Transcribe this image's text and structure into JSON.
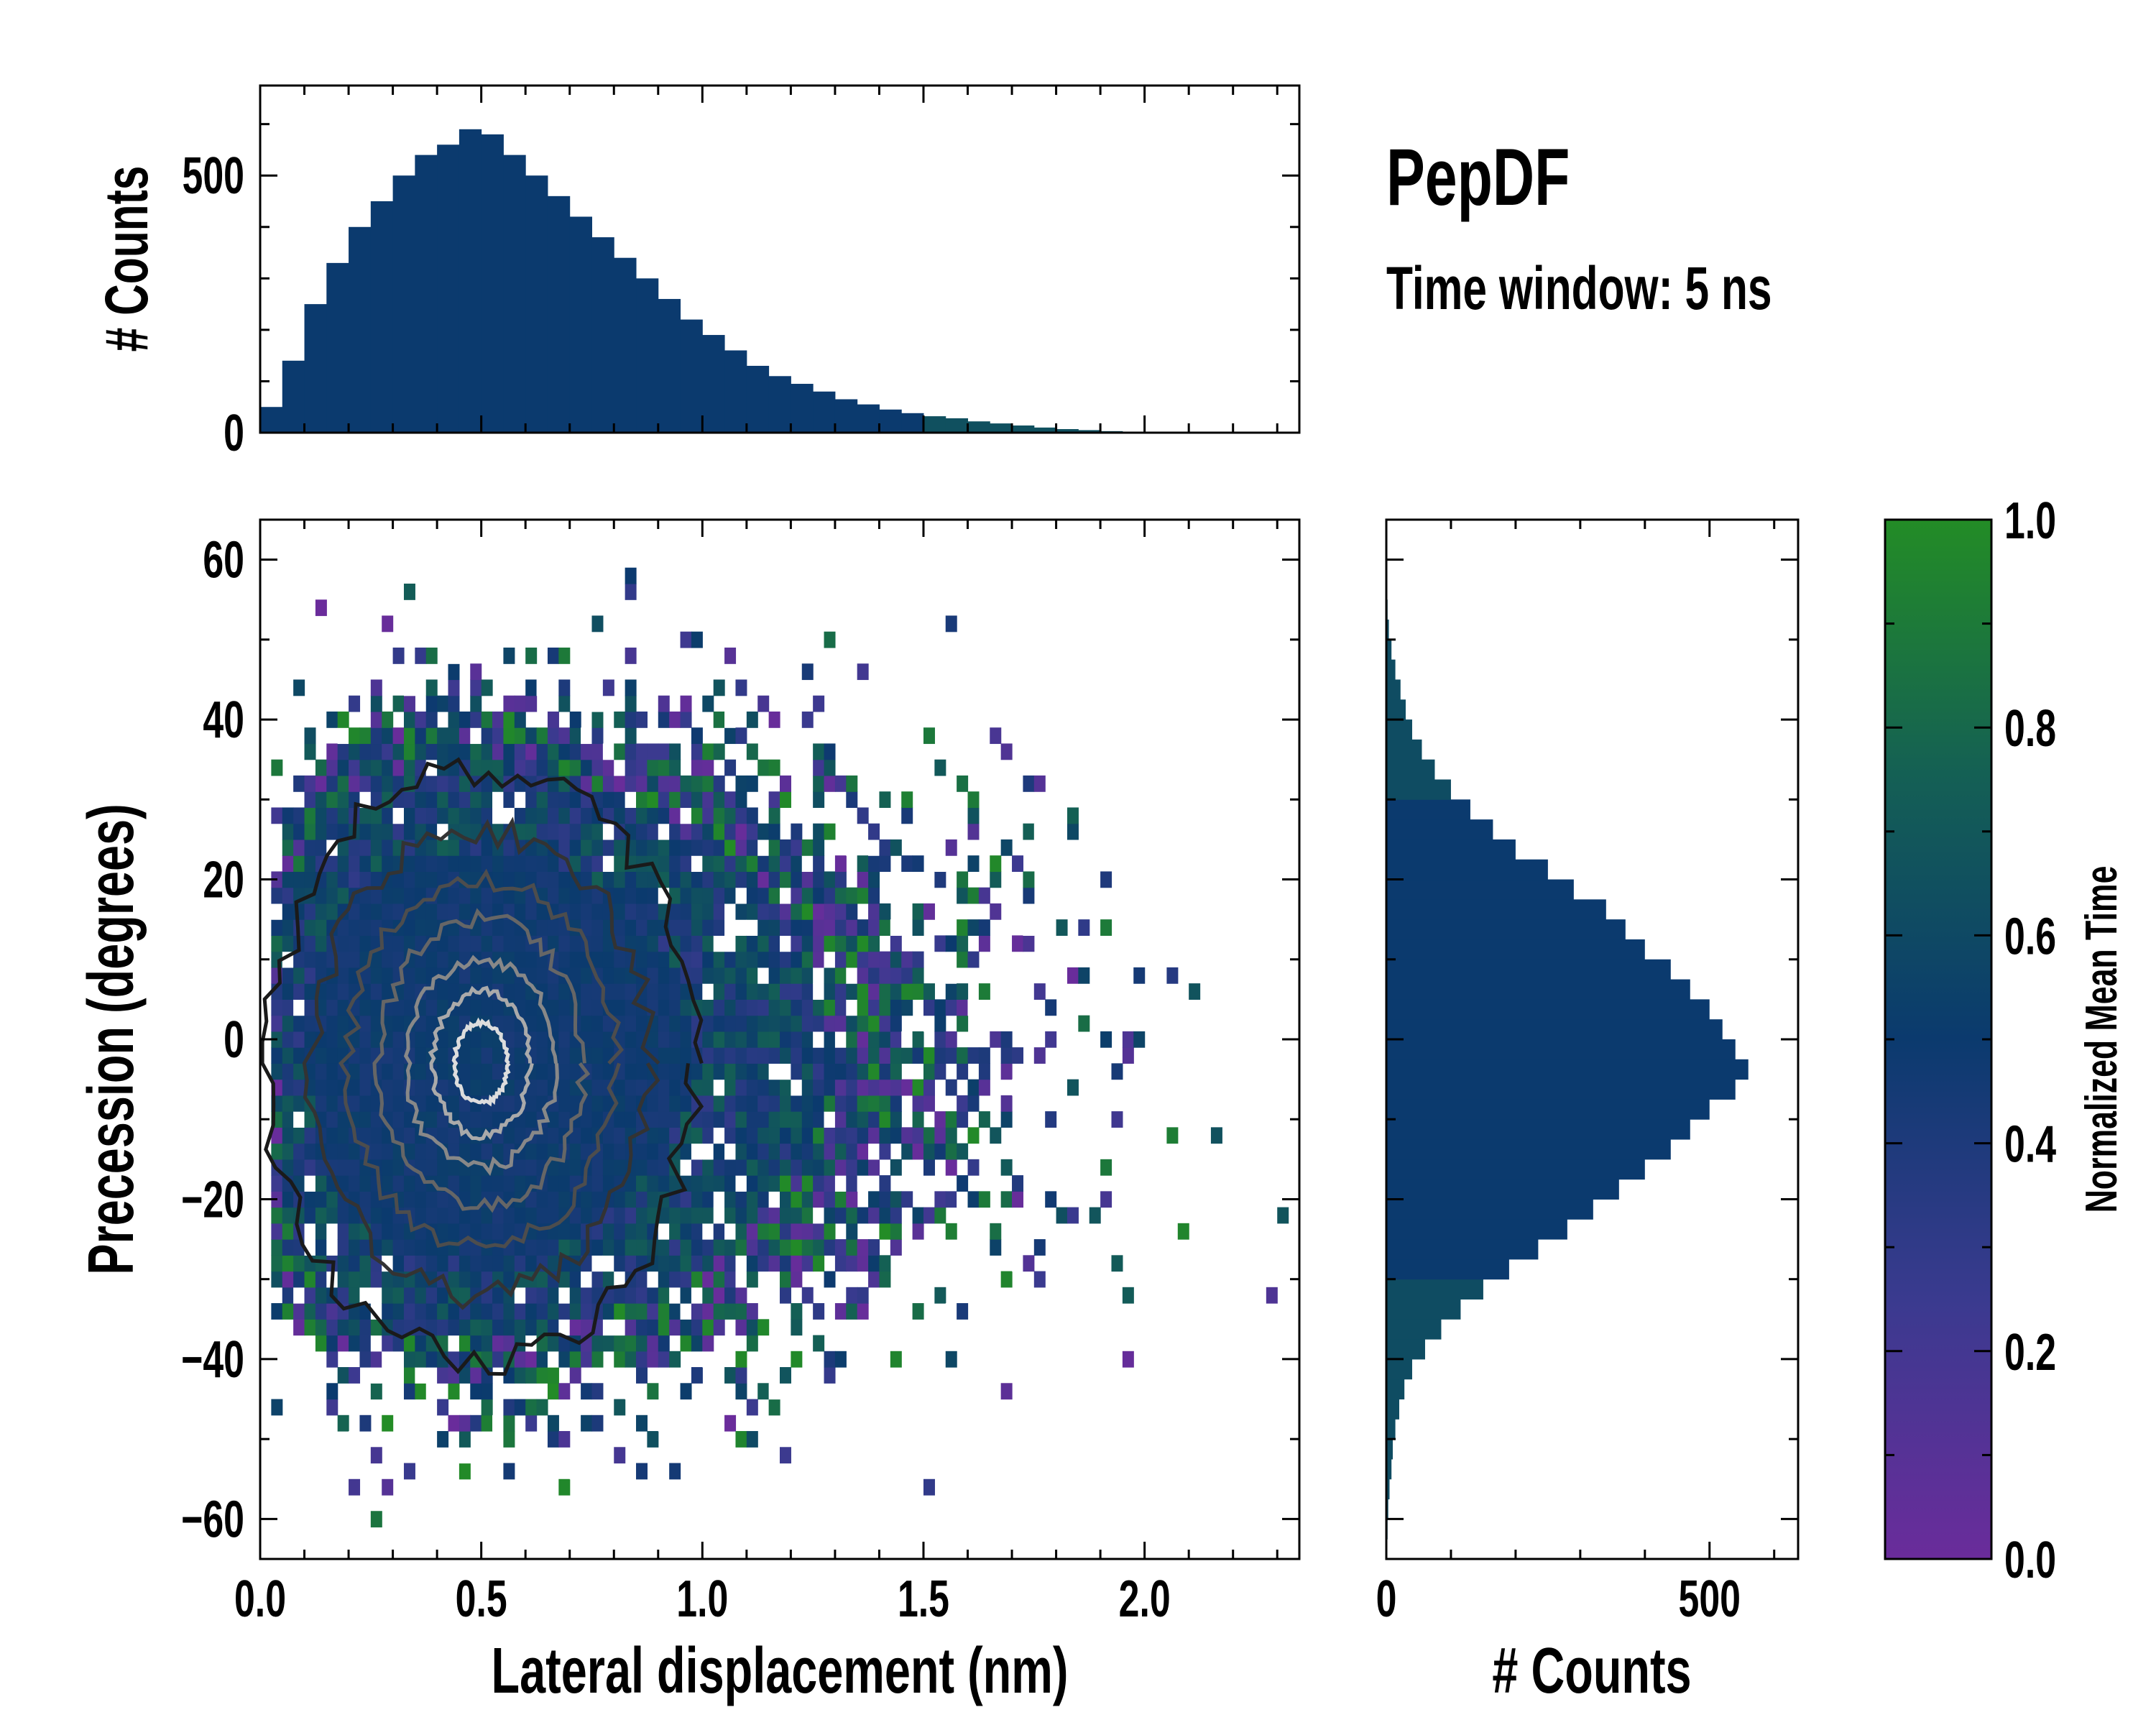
{
  "title": "PepDF",
  "subtitle": "Time window: 5 ns",
  "chart_data": [
    {
      "name": "joint",
      "type": "heatmap",
      "xlabel": "Lateral displacement (nm)",
      "ylabel": "Precession (degrees)",
      "xlim": [
        0,
        2.35
      ],
      "ylim": [
        -65,
        65
      ],
      "xticks": [
        0.0,
        0.5,
        1.0,
        1.5,
        2.0
      ],
      "xtick_labels": [
        "0.0",
        "0.5",
        "1.0",
        "1.5",
        "2.0"
      ],
      "yticks": [
        -60,
        -40,
        -20,
        0,
        20,
        40,
        60
      ],
      "ytick_labels": [
        "−60",
        "−40",
        "−20",
        "0",
        "20",
        "40",
        "60"
      ],
      "color_value": "Normalized Mean Time",
      "contours": "density contours, dark outer to light inner",
      "density_center": [
        0.5,
        -3
      ]
    },
    {
      "name": "top-marginal",
      "type": "bar",
      "ylabel": "# Counts",
      "xlim": [
        0,
        2.35
      ],
      "ylim": [
        0,
        675
      ],
      "yticks": [
        0,
        500
      ],
      "ytick_labels": [
        "0",
        "500"
      ],
      "bin_width": 0.05,
      "x": [
        0.025,
        0.075,
        0.125,
        0.175,
        0.225,
        0.275,
        0.325,
        0.375,
        0.425,
        0.475,
        0.525,
        0.575,
        0.625,
        0.675,
        0.725,
        0.775,
        0.825,
        0.875,
        0.925,
        0.975,
        1.025,
        1.075,
        1.125,
        1.175,
        1.225,
        1.275,
        1.325,
        1.375,
        1.425,
        1.475,
        1.525,
        1.575,
        1.625,
        1.675,
        1.725,
        1.775,
        1.825,
        1.875,
        1.925,
        1.975,
        2.025,
        2.075,
        2.125,
        2.175,
        2.225,
        2.275,
        2.325
      ],
      "values": [
        50,
        140,
        250,
        330,
        400,
        450,
        500,
        540,
        560,
        590,
        580,
        540,
        500,
        460,
        420,
        380,
        340,
        300,
        260,
        220,
        190,
        160,
        130,
        110,
        95,
        80,
        65,
        55,
        45,
        38,
        32,
        28,
        22,
        18,
        14,
        10,
        7,
        5,
        3,
        2,
        2,
        1,
        1,
        1,
        0,
        1,
        0
      ]
    },
    {
      "name": "right-marginal",
      "type": "bar",
      "orientation": "horizontal",
      "xlabel": "# Counts",
      "xlim": [
        0,
        637
      ],
      "ylim": [
        -65,
        65
      ],
      "xticks": [
        0,
        500
      ],
      "xtick_labels": [
        "0",
        "500"
      ],
      "bin_width": 2.5,
      "y": [
        -63.75,
        -61.25,
        -58.75,
        -56.25,
        -53.75,
        -51.25,
        -48.75,
        -46.25,
        -43.75,
        -41.25,
        -38.75,
        -36.25,
        -33.75,
        -31.25,
        -28.75,
        -26.25,
        -23.75,
        -21.25,
        -18.75,
        -16.25,
        -13.75,
        -11.25,
        -8.75,
        -6.25,
        -3.75,
        -1.25,
        1.25,
        3.75,
        6.25,
        8.75,
        11.25,
        13.75,
        16.25,
        18.75,
        21.25,
        23.75,
        26.25,
        28.75,
        31.25,
        33.75,
        36.25,
        38.75,
        41.25,
        43.75,
        46.25,
        48.75,
        51.25,
        53.75,
        56.25,
        58.75,
        61.25,
        63.75
      ],
      "values": [
        1,
        2,
        3,
        5,
        8,
        10,
        14,
        20,
        28,
        40,
        60,
        85,
        115,
        150,
        190,
        235,
        280,
        320,
        360,
        400,
        440,
        470,
        500,
        540,
        560,
        540,
        520,
        500,
        470,
        440,
        400,
        370,
        340,
        290,
        250,
        200,
        165,
        130,
        100,
        75,
        55,
        40,
        30,
        22,
        14,
        8,
        4,
        2,
        1,
        0,
        0,
        0
      ]
    },
    {
      "name": "colorbar",
      "type": "colorbar",
      "label": "Normalized Mean Time",
      "range": [
        0,
        1
      ],
      "ticks": [
        0.0,
        0.2,
        0.4,
        0.6,
        0.8,
        1.0
      ],
      "tick_labels": [
        "0.0",
        "0.2",
        "0.4",
        "0.6",
        "0.8",
        "1.0"
      ],
      "colors": [
        "#6a2c9b",
        "#3a3a8f",
        "#0b3a6e",
        "#145f55",
        "#238c26"
      ]
    }
  ]
}
